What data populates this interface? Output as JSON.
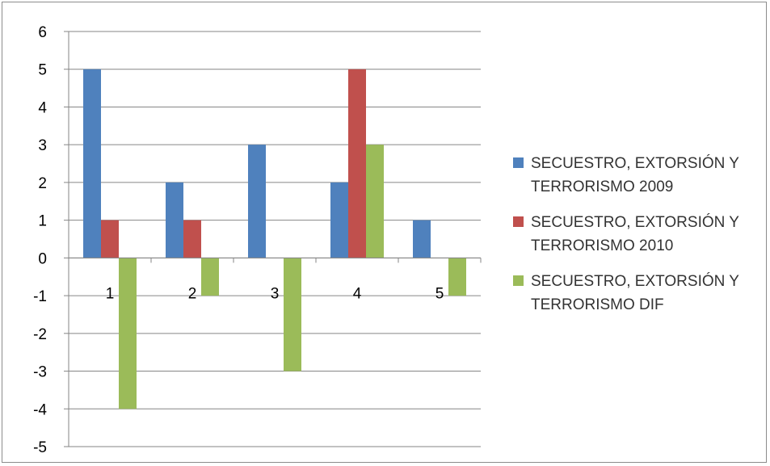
{
  "chart_data": {
    "type": "bar",
    "categories": [
      "1",
      "2",
      "3",
      "4",
      "5"
    ],
    "series": [
      {
        "name": "SECUESTRO, EXTORSIÓN Y TERRORISMO 2009",
        "color": "#4f81bd",
        "values": [
          5,
          2,
          3,
          2,
          1
        ]
      },
      {
        "name": "SECUESTRO, EXTORSIÓN Y TERRORISMO 2010",
        "color": "#c0504d",
        "values": [
          1,
          1,
          0,
          5,
          0
        ]
      },
      {
        "name": "SECUESTRO, EXTORSIÓN Y TERRORISMO DIF",
        "color": "#9bbb59",
        "values": [
          -4,
          -1,
          -3,
          3,
          -1
        ]
      }
    ],
    "y_ticks": [
      "6",
      "5",
      "4",
      "3",
      "2",
      "1",
      "0",
      "-1",
      "-2",
      "-3",
      "-4",
      "-5"
    ],
    "ylim": [
      -5,
      6
    ],
    "grid": true,
    "legend_position": "right"
  },
  "legend": {
    "items": [
      {
        "label": "SECUESTRO, EXTORSIÓN Y TERRORISMO 2009",
        "color": "#4f81bd"
      },
      {
        "label": "SECUESTRO, EXTORSIÓN Y TERRORISMO 2010",
        "color": "#c0504d"
      },
      {
        "label": "SECUESTRO, EXTORSIÓN Y TERRORISMO DIF",
        "color": "#9bbb59"
      }
    ]
  }
}
